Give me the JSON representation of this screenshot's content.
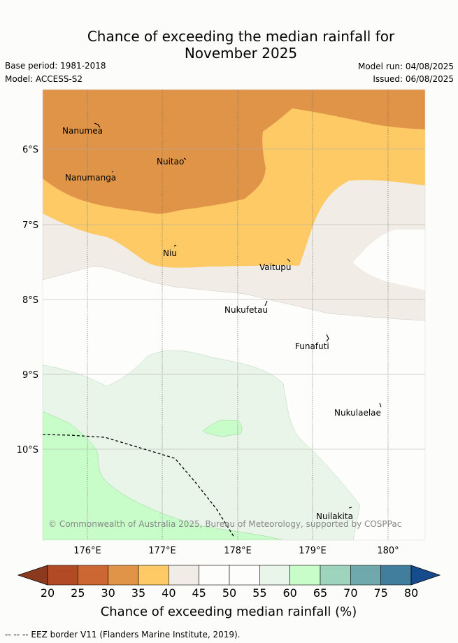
{
  "header": {
    "title_line1": "Chance of exceeding the median rainfall for",
    "title_line2": "November 2025",
    "base_period": "Base period: 1981-2018",
    "model": "Model: ACCESS-S2",
    "model_run": "Model run: 04/08/2025",
    "issued": "Issued: 06/08/2025"
  },
  "map": {
    "lat_labels": [
      "6°S",
      "7°S",
      "8°S",
      "9°S",
      "10°S"
    ],
    "lon_labels": [
      "176°E",
      "177°E",
      "178°E",
      "179°E",
      "180°"
    ],
    "places": [
      {
        "name": "Nanumea"
      },
      {
        "name": "Nuitao"
      },
      {
        "name": "Nanumanga"
      },
      {
        "name": "Niu"
      },
      {
        "name": "Vaitupu"
      },
      {
        "name": "Nukufetau"
      },
      {
        "name": "Funafuti"
      },
      {
        "name": "Nukulaelae"
      },
      {
        "name": "Nuilakita"
      }
    ],
    "copyright": "© Commonwealth of Australia 2025, Bureau of Meteorology, supported by COSPPac"
  },
  "colorbar": {
    "ticks": [
      "20",
      "25",
      "30",
      "35",
      "40",
      "45",
      "50",
      "55",
      "60",
      "65",
      "70",
      "75",
      "80"
    ],
    "colors": [
      "#8b3a1e",
      "#b24a25",
      "#cc6633",
      "#e09448",
      "#fdca65",
      "#f1ece6",
      "#fdfdfb",
      "#fdfdfb",
      "#e9f5e9",
      "#c8fcc8",
      "#9ed3be",
      "#70a9ad",
      "#417d9c",
      "#164b8c"
    ],
    "label": "Chance of exceeding median rainfall (%)"
  },
  "footer": {
    "legend": "--  --  -- EEZ border V11 (Flanders Marine Institute, 2019)."
  }
}
